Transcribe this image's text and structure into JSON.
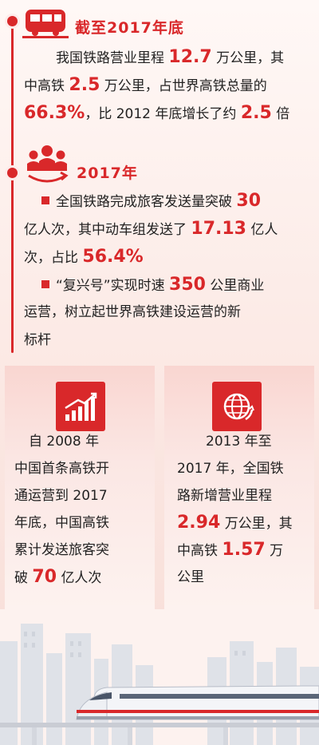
{
  "section1": {
    "title": "截至2017年底",
    "line1_a": "我国铁路营业里程",
    "line1_num": "12.7",
    "line1_b": "万公里，其",
    "line2_a": "中高铁",
    "line2_num": "2.5",
    "line2_b": "万公里，占世界高铁总量的",
    "line3_num": "66.3%",
    "line3_a": "，比 2012 年底增长了约",
    "line3_num2": "2.5",
    "line3_b": "倍"
  },
  "section2": {
    "title": "2017年",
    "b1_l1_a": "全国铁路完成旅客发送量突破",
    "b1_l1_num": "30",
    "b1_l2_a": "亿人次，其中动车组发送了",
    "b1_l2_num": "17.13",
    "b1_l2_b": "亿人",
    "b1_l3_a": "次，占比",
    "b1_l3_num": "56.4%",
    "b2_l1_a": "“复兴号”实现时速",
    "b2_l1_num": "350",
    "b2_l1_b": "公里商业",
    "b2_l2": "运营，树立起世界高铁建设运营的新",
    "b2_l3": "标杆"
  },
  "card_left": {
    "l1": "自 2008 年",
    "l2": "中国首条高铁开",
    "l3": "通运营到 2017",
    "l4": "年底，中国高铁",
    "l5": "累计发送旅客突",
    "l6_a": "破",
    "l6_num": "70",
    "l6_b": "亿人次"
  },
  "card_right": {
    "l1": "2013 年至",
    "l2": "2017 年，全国铁",
    "l3": "路新增营业里程",
    "l4_num": "2.94",
    "l4_a": "万公里，其",
    "l5_a": "中高铁",
    "l5_num": "1.57",
    "l5_b": "万",
    "l6": "公里"
  },
  "colors": {
    "accent": "#d9282a",
    "text": "#222222",
    "background": "#fdf2ef"
  },
  "icons": [
    "train-icon",
    "people-icon",
    "growth-chart-icon",
    "globe-icon"
  ]
}
